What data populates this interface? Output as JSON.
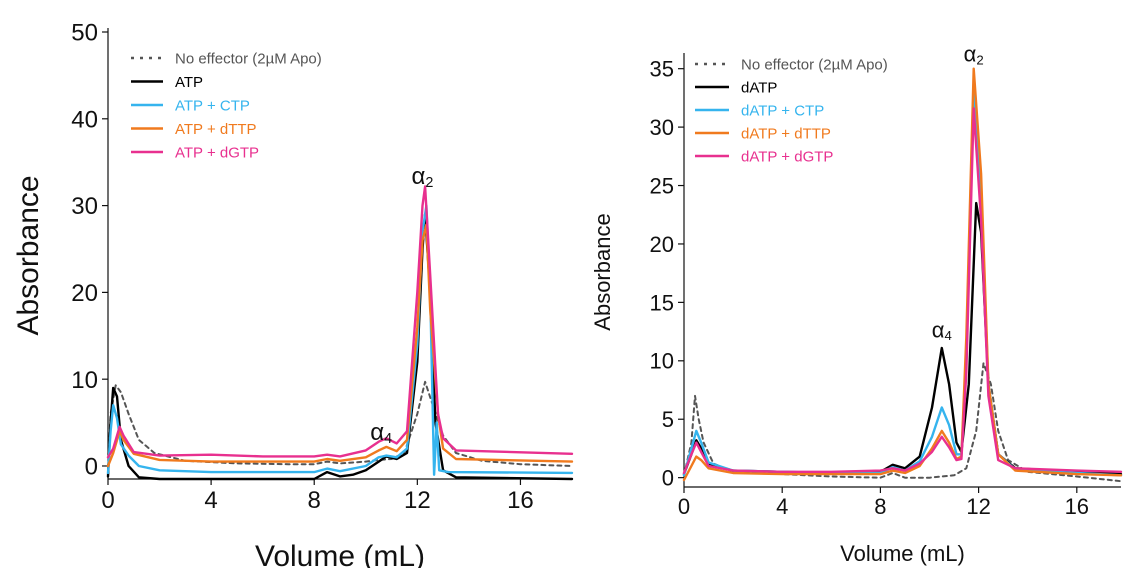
{
  "chart_data": [
    {
      "type": "line",
      "title": "",
      "xlabel": "Volume (mL)",
      "ylabel": "Absorbance",
      "xlim": [
        0,
        18
      ],
      "ylim": [
        -1.5,
        50
      ],
      "xticks": [
        "0",
        "4",
        "8",
        "12",
        "16"
      ],
      "yticks": [
        "0",
        "10",
        "20",
        "30",
        "40",
        "50"
      ],
      "grid": false,
      "legend_position": "top-left",
      "annotations": [
        {
          "text": "α",
          "sub": "2",
          "x": 12.2,
          "y": 32.5
        },
        {
          "text": "α",
          "sub": "4",
          "x": 10.6,
          "y": 3.0
        }
      ],
      "series": [
        {
          "name": "No effector (2µM Apo)",
          "color": "#555555",
          "dashed": true,
          "points": [
            [
              0,
              -0.3
            ],
            [
              0.1,
              6
            ],
            [
              0.3,
              9.3
            ],
            [
              0.5,
              8.5
            ],
            [
              0.8,
              6
            ],
            [
              1.2,
              3
            ],
            [
              1.8,
              1.5
            ],
            [
              3,
              0.6
            ],
            [
              5,
              0.3
            ],
            [
              7,
              0.2
            ],
            [
              8,
              0.2
            ],
            [
              8.5,
              0.5
            ],
            [
              9,
              0.3
            ],
            [
              10,
              0.5
            ],
            [
              10.5,
              0.7
            ],
            [
              11,
              0.8
            ],
            [
              11.5,
              1.5
            ],
            [
              12,
              6
            ],
            [
              12.3,
              9.7
            ],
            [
              12.6,
              7
            ],
            [
              13,
              3.5
            ],
            [
              13.5,
              1.5
            ],
            [
              14.5,
              0.6
            ],
            [
              16,
              0.2
            ],
            [
              18,
              0
            ]
          ]
        },
        {
          "name": "ATP",
          "color": "#000000",
          "dashed": false,
          "points": [
            [
              0,
              -1.2
            ],
            [
              0.1,
              5
            ],
            [
              0.2,
              9
            ],
            [
              0.35,
              8
            ],
            [
              0.5,
              3
            ],
            [
              0.8,
              0
            ],
            [
              1.2,
              -1.3
            ],
            [
              2,
              -1.5
            ],
            [
              4,
              -1.5
            ],
            [
              6,
              -1.5
            ],
            [
              8,
              -1.5
            ],
            [
              8.5,
              -0.7
            ],
            [
              9,
              -1.2
            ],
            [
              9.5,
              -1
            ],
            [
              10,
              -0.5
            ],
            [
              10.5,
              0.5
            ],
            [
              10.8,
              1.1
            ],
            [
              11.2,
              0.8
            ],
            [
              11.6,
              1.5
            ],
            [
              12,
              12
            ],
            [
              12.2,
              25
            ],
            [
              12.3,
              29
            ],
            [
              12.5,
              20
            ],
            [
              12.7,
              5
            ],
            [
              13,
              -0.5
            ],
            [
              13.5,
              -1.3
            ],
            [
              18,
              -1.5
            ]
          ]
        },
        {
          "name": "ATP + CTP",
          "color": "#35b4ee",
          "dashed": false,
          "points": [
            [
              0,
              -0.8
            ],
            [
              0.1,
              4
            ],
            [
              0.2,
              7
            ],
            [
              0.35,
              5.5
            ],
            [
              0.5,
              2.5
            ],
            [
              0.8,
              1.2
            ],
            [
              1.2,
              0
            ],
            [
              2,
              -0.5
            ],
            [
              4,
              -0.7
            ],
            [
              6,
              -0.7
            ],
            [
              8,
              -0.7
            ],
            [
              8.5,
              -0.3
            ],
            [
              9,
              -0.6
            ],
            [
              10,
              0
            ],
            [
              10.5,
              1
            ],
            [
              10.8,
              1.2
            ],
            [
              11.2,
              1
            ],
            [
              11.6,
              2
            ],
            [
              12,
              14
            ],
            [
              12.2,
              27
            ],
            [
              12.35,
              30
            ],
            [
              12.5,
              20
            ],
            [
              12.65,
              -1
            ],
            [
              12.75,
              5
            ],
            [
              12.85,
              -0.5
            ],
            [
              13.2,
              -0.7
            ],
            [
              18,
              -0.8
            ]
          ]
        },
        {
          "name": "ATP + dTTP",
          "color": "#f07a1e",
          "dashed": false,
          "points": [
            [
              0,
              0
            ],
            [
              0.2,
              1.5
            ],
            [
              0.45,
              4
            ],
            [
              0.6,
              3
            ],
            [
              1,
              1.4
            ],
            [
              2,
              0.7
            ],
            [
              4,
              0.5
            ],
            [
              6,
              0.5
            ],
            [
              8,
              0.5
            ],
            [
              8.5,
              0.8
            ],
            [
              9,
              0.6
            ],
            [
              10,
              1
            ],
            [
              10.5,
              1.8
            ],
            [
              10.8,
              2.2
            ],
            [
              11.2,
              1.7
            ],
            [
              11.6,
              3
            ],
            [
              12,
              16
            ],
            [
              12.2,
              26
            ],
            [
              12.35,
              27.8
            ],
            [
              12.5,
              18
            ],
            [
              12.8,
              6
            ],
            [
              13,
              2
            ],
            [
              13.5,
              0.8
            ],
            [
              18,
              0.5
            ]
          ]
        },
        {
          "name": "ATP + dGTP",
          "color": "#e8308f",
          "dashed": false,
          "points": [
            [
              0,
              1
            ],
            [
              0.2,
              2
            ],
            [
              0.45,
              4.5
            ],
            [
              0.6,
              3.5
            ],
            [
              1,
              1.6
            ],
            [
              2,
              1.2
            ],
            [
              4,
              1.3
            ],
            [
              6,
              1.1
            ],
            [
              8,
              1.1
            ],
            [
              8.5,
              1.3
            ],
            [
              9,
              1.1
            ],
            [
              10,
              1.8
            ],
            [
              10.5,
              2.8
            ],
            [
              10.8,
              3.2
            ],
            [
              11.2,
              2.6
            ],
            [
              11.6,
              4
            ],
            [
              12,
              20
            ],
            [
              12.2,
              30
            ],
            [
              12.3,
              32.2
            ],
            [
              12.5,
              22
            ],
            [
              12.8,
              6
            ],
            [
              13,
              3.2
            ],
            [
              13.5,
              1.8
            ],
            [
              18,
              1.4
            ]
          ]
        }
      ]
    },
    {
      "type": "line",
      "title": "",
      "xlabel": "Volume (mL)",
      "ylabel": "Absorbance",
      "xlim": [
        0,
        17.8
      ],
      "ylim": [
        -0.8,
        36
      ],
      "xticks": [
        "0",
        "4",
        "8",
        "12",
        "16"
      ],
      "yticks": [
        "0",
        "5",
        "10",
        "15",
        "20",
        "25",
        "30",
        "35"
      ],
      "grid": false,
      "legend_position": "top-left",
      "annotations": [
        {
          "text": "α",
          "sub": "2",
          "x": 11.8,
          "y": 35.6
        },
        {
          "text": "α",
          "sub": "4",
          "x": 10.5,
          "y": 12.0
        }
      ],
      "series": [
        {
          "name": "No effector (2µM Apo)",
          "color": "#555555",
          "dashed": true,
          "points": [
            [
              0,
              0.2
            ],
            [
              0.3,
              3
            ],
            [
              0.45,
              7
            ],
            [
              0.6,
              5
            ],
            [
              0.8,
              3
            ],
            [
              1.2,
              1.2
            ],
            [
              2,
              0.5
            ],
            [
              4,
              0.3
            ],
            [
              6,
              0.1
            ],
            [
              8,
              0
            ],
            [
              8.5,
              0.4
            ],
            [
              9,
              0
            ],
            [
              10,
              0
            ],
            [
              11,
              0.2
            ],
            [
              11.5,
              0.8
            ],
            [
              11.9,
              4
            ],
            [
              12.2,
              9.8
            ],
            [
              12.5,
              8
            ],
            [
              12.8,
              4
            ],
            [
              13.2,
              1.5
            ],
            [
              14,
              0.5
            ],
            [
              16,
              0.1
            ],
            [
              17.8,
              -0.3
            ]
          ]
        },
        {
          "name": "dATP",
          "color": "#000000",
          "dashed": false,
          "points": [
            [
              0,
              0.3
            ],
            [
              0.3,
              2
            ],
            [
              0.5,
              3.2
            ],
            [
              0.7,
              2.5
            ],
            [
              1,
              1.2
            ],
            [
              2,
              0.6
            ],
            [
              4,
              0.5
            ],
            [
              6,
              0.4
            ],
            [
              8,
              0.5
            ],
            [
              8.5,
              1.1
            ],
            [
              9,
              0.8
            ],
            [
              9.6,
              1.8
            ],
            [
              10.1,
              6
            ],
            [
              10.5,
              11.1
            ],
            [
              10.8,
              8
            ],
            [
              11.1,
              3
            ],
            [
              11.3,
              2.2
            ],
            [
              11.6,
              8
            ],
            [
              11.9,
              23.5
            ],
            [
              12.1,
              21
            ],
            [
              12.4,
              8
            ],
            [
              12.8,
              2
            ],
            [
              13.5,
              0.8
            ],
            [
              16,
              0.5
            ],
            [
              17.8,
              0.3
            ]
          ]
        },
        {
          "name": "dATP + CTP",
          "color": "#35b4ee",
          "dashed": false,
          "points": [
            [
              0,
              0.2
            ],
            [
              0.3,
              2.5
            ],
            [
              0.5,
              4
            ],
            [
              0.7,
              3
            ],
            [
              1,
              1.3
            ],
            [
              2,
              0.6
            ],
            [
              4,
              0.5
            ],
            [
              6,
              0.4
            ],
            [
              8,
              0.4
            ],
            [
              8.5,
              0.9
            ],
            [
              9,
              0.6
            ],
            [
              9.6,
              1.4
            ],
            [
              10.1,
              3.5
            ],
            [
              10.5,
              6
            ],
            [
              10.8,
              4.5
            ],
            [
              11.1,
              2
            ],
            [
              11.3,
              2
            ],
            [
              11.5,
              10
            ],
            [
              11.8,
              33.5
            ],
            [
              12.1,
              24
            ],
            [
              12.4,
              8
            ],
            [
              12.8,
              2
            ],
            [
              13.5,
              0.7
            ],
            [
              16,
              0.4
            ],
            [
              17.8,
              0.2
            ]
          ]
        },
        {
          "name": "dATP + dTTP",
          "color": "#f07a1e",
          "dashed": false,
          "points": [
            [
              0,
              -0.2
            ],
            [
              0.3,
              1
            ],
            [
              0.5,
              1.8
            ],
            [
              0.7,
              1.5
            ],
            [
              1,
              0.8
            ],
            [
              2,
              0.4
            ],
            [
              4,
              0.3
            ],
            [
              6,
              0.3
            ],
            [
              8,
              0.3
            ],
            [
              8.5,
              0.6
            ],
            [
              9,
              0.4
            ],
            [
              9.6,
              1
            ],
            [
              10.1,
              2.5
            ],
            [
              10.5,
              4
            ],
            [
              10.8,
              3
            ],
            [
              11.1,
              1.6
            ],
            [
              11.3,
              1.8
            ],
            [
              11.5,
              12
            ],
            [
              11.8,
              35
            ],
            [
              12.1,
              26
            ],
            [
              12.4,
              8
            ],
            [
              12.8,
              2
            ],
            [
              13.5,
              0.6
            ],
            [
              16,
              0.3
            ],
            [
              17.8,
              0.2
            ]
          ]
        },
        {
          "name": "dATP + dGTP",
          "color": "#e8308f",
          "dashed": false,
          "points": [
            [
              0,
              0.4
            ],
            [
              0.3,
              2
            ],
            [
              0.5,
              3
            ],
            [
              0.7,
              2.2
            ],
            [
              1,
              1
            ],
            [
              2,
              0.6
            ],
            [
              4,
              0.5
            ],
            [
              6,
              0.5
            ],
            [
              8,
              0.6
            ],
            [
              8.5,
              0.8
            ],
            [
              9,
              0.6
            ],
            [
              9.6,
              1.2
            ],
            [
              10.1,
              2.2
            ],
            [
              10.5,
              3.5
            ],
            [
              10.8,
              2.6
            ],
            [
              11.1,
              1.5
            ],
            [
              11.3,
              1.6
            ],
            [
              11.5,
              9
            ],
            [
              11.8,
              31.6
            ],
            [
              12.1,
              22
            ],
            [
              12.4,
              7
            ],
            [
              12.8,
              1.5
            ],
            [
              13.5,
              0.8
            ],
            [
              16,
              0.6
            ],
            [
              17.8,
              0.5
            ]
          ]
        }
      ]
    }
  ]
}
